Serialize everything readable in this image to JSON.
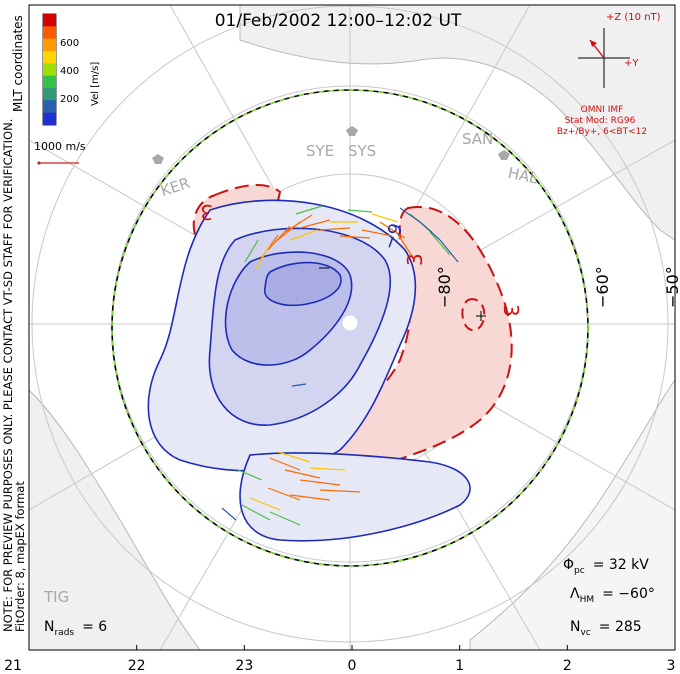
{
  "title": "01/Feb/2002 12:00–12:02 UT",
  "colorbar": {
    "label": "Vel [m/s]",
    "ticks": [
      "600",
      "400",
      "200"
    ],
    "colors": [
      "#d40000",
      "#ff5a00",
      "#ff9b00",
      "#ffd400",
      "#9be000",
      "#35c04a",
      "#2f9a7a",
      "#2b5fb0",
      "#1f2fd0"
    ]
  },
  "coord_label": "MLT coordinates",
  "scale_vector": {
    "label": "1000 m/s"
  },
  "imf": {
    "scale": "+Z (10 nT)",
    "y_label": "+Y",
    "source": "OMNI IMF",
    "stat_mod": "Stat Mod: RG96",
    "condition": "Bz+/By+, 6<BT<12"
  },
  "stations": [
    "KER",
    "SYE",
    "SYS",
    "SAN",
    "HAL",
    "TIG"
  ],
  "lat_labels": [
    "−80°",
    "−60°",
    "−50°"
  ],
  "contour_labels": {
    "negative": "−9",
    "positive": "3",
    "positive_b": "3",
    "positive_c": "3"
  },
  "note": "NOTE: FOR PREVIEW PURPOSES ONLY. PLEASE CONTACT VT-SD STAFF FOR VERIFICATION.",
  "fit_order": "FitOrder: 8, mapEX format",
  "stats": {
    "phi_pc": {
      "symbol": "Φ",
      "sub": "pc",
      "value": "= 32 kV"
    },
    "lambda_hm": {
      "symbol": "Λ",
      "sub": "HM",
      "value": "= −60°"
    },
    "n_vc": {
      "symbol": "N",
      "sub": "vc",
      "value": "= 285"
    },
    "n_rads": {
      "symbol": "N",
      "sub": "rads",
      "value": "= 6"
    }
  },
  "mlt_ticks": [
    "21",
    "22",
    "23",
    "0",
    "1",
    "2",
    "3"
  ]
}
